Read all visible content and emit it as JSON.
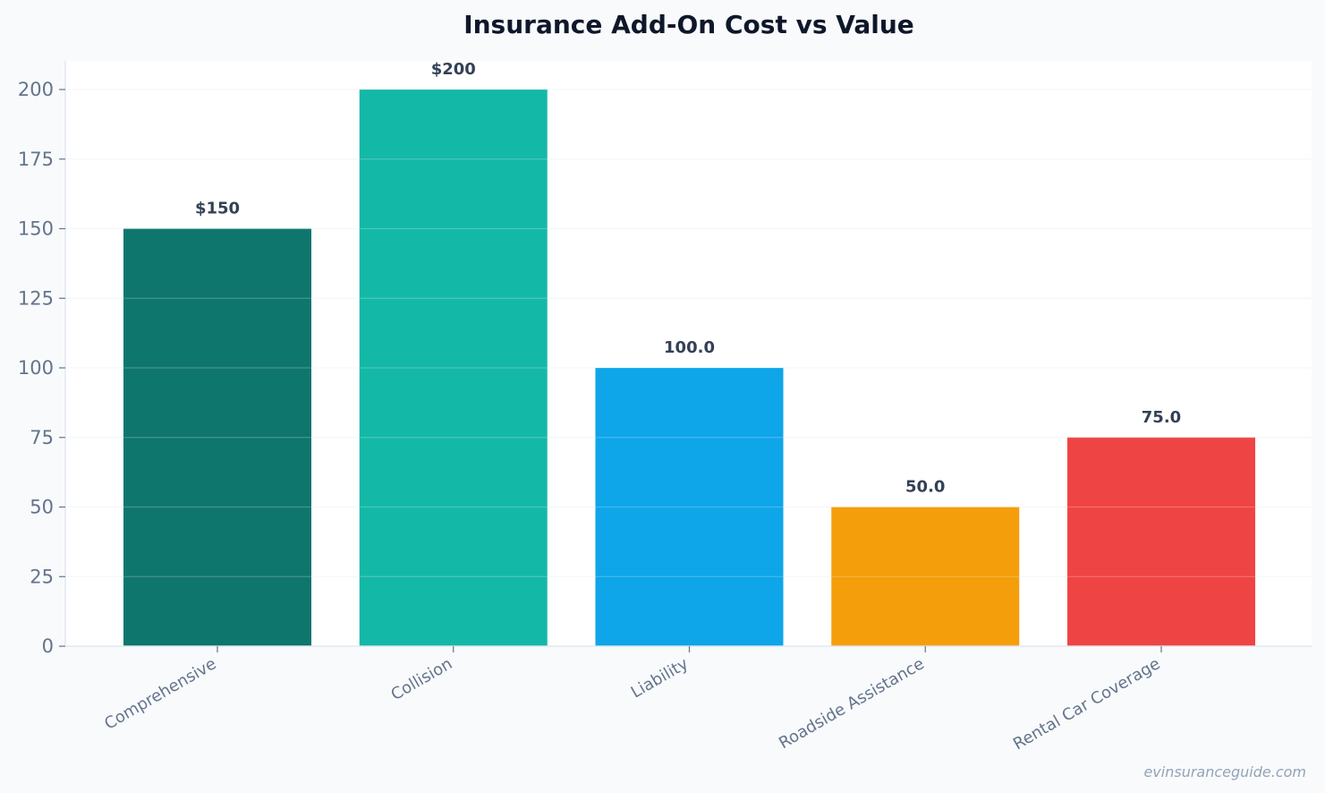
{
  "chart_data": {
    "type": "bar",
    "title": "Insurance Add-On Cost vs Value",
    "xlabel": "",
    "ylabel": "",
    "categories": [
      "Comprehensive",
      "Collision",
      "Liability",
      "Roadside Assistance",
      "Rental Car Coverage"
    ],
    "values": [
      150,
      200,
      100,
      50,
      75
    ],
    "data_labels": [
      "$150",
      "$200",
      "100.0",
      "50.0",
      "75.0"
    ],
    "colors": [
      "#0f766e",
      "#14b8a6",
      "#0ea5e9",
      "#f59e0b",
      "#ef4444"
    ],
    "ylim": [
      0,
      210
    ],
    "yticks": [
      0,
      25,
      50,
      75,
      100,
      125,
      150,
      175,
      200
    ],
    "grid": true,
    "legend": "none"
  },
  "watermark": "evinsuranceguide.com"
}
